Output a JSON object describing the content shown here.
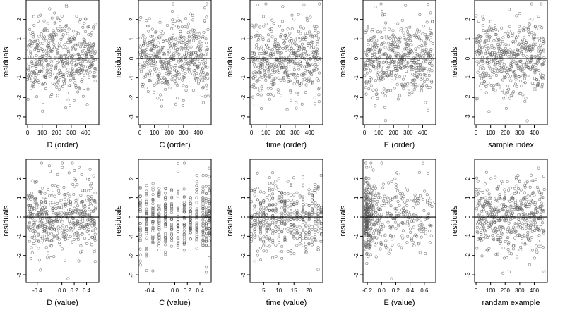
{
  "chart_data": [
    {
      "type": "scatter",
      "xlabel": "D (order)",
      "ylabel": "residuals",
      "xlim": [
        -10,
        490
      ],
      "ylim": [
        -3.4,
        3.0
      ],
      "xticks": [
        0,
        100,
        200,
        300,
        400
      ],
      "xtick_labels": [
        "0",
        "100",
        "200",
        "300",
        "400"
      ],
      "yticks": [
        -3,
        -2,
        -1,
        0,
        1,
        2
      ],
      "ytick_labels": [
        "-3",
        "-2",
        "-1",
        "0",
        "1",
        "2"
      ],
      "reference_line": 0,
      "x_kind": "index",
      "n": 470,
      "seed": 11
    },
    {
      "type": "scatter",
      "xlabel": "C (order)",
      "ylabel": "residuals",
      "xlim": [
        -10,
        490
      ],
      "ylim": [
        -3.4,
        3.0
      ],
      "xticks": [
        0,
        100,
        200,
        300,
        400
      ],
      "xtick_labels": [
        "0",
        "100",
        "200",
        "300",
        "400"
      ],
      "yticks": [
        -3,
        -2,
        -1,
        0,
        1,
        2
      ],
      "ytick_labels": [
        "-3",
        "-2",
        "-1",
        "0",
        "1",
        "2"
      ],
      "reference_line": 0,
      "x_kind": "index",
      "n": 470,
      "seed": 23
    },
    {
      "type": "scatter",
      "xlabel": "time (order)",
      "ylabel": "residuals",
      "xlim": [
        -10,
        490
      ],
      "ylim": [
        -3.4,
        3.0
      ],
      "xticks": [
        0,
        100,
        200,
        300,
        400
      ],
      "xtick_labels": [
        "0",
        "100",
        "200",
        "300",
        "400"
      ],
      "yticks": [
        -3,
        -2,
        -1,
        0,
        1,
        2
      ],
      "ytick_labels": [
        "-3",
        "-2",
        "-1",
        "0",
        "1",
        "2"
      ],
      "reference_line": 0,
      "x_kind": "index",
      "n": 470,
      "seed": 37
    },
    {
      "type": "scatter",
      "xlabel": "E (order)",
      "ylabel": "residuals",
      "xlim": [
        -10,
        490
      ],
      "ylim": [
        -3.4,
        3.0
      ],
      "xticks": [
        0,
        100,
        200,
        300,
        400
      ],
      "xtick_labels": [
        "0",
        "100",
        "200",
        "300",
        "400"
      ],
      "yticks": [
        -3,
        -2,
        -1,
        0,
        1,
        2
      ],
      "ytick_labels": [
        "-3",
        "-2",
        "-1",
        "0",
        "1",
        "2"
      ],
      "reference_line": 0,
      "x_kind": "index",
      "n": 470,
      "seed": 41
    },
    {
      "type": "scatter",
      "xlabel": "sample index",
      "ylabel": "residuals",
      "xlim": [
        -10,
        490
      ],
      "ylim": [
        -3.4,
        3.0
      ],
      "xticks": [
        0,
        100,
        200,
        300,
        400
      ],
      "xtick_labels": [
        "0",
        "100",
        "200",
        "300",
        "400"
      ],
      "yticks": [
        -3,
        -2,
        -1,
        0,
        1,
        2
      ],
      "ytick_labels": [
        "-3",
        "-2",
        "-1",
        "0",
        "1",
        "2"
      ],
      "reference_line": 0,
      "x_kind": "index",
      "n": 470,
      "seed": 53
    },
    {
      "type": "scatter",
      "xlabel": "D (value)",
      "ylabel": "residuals",
      "xlim": [
        -0.58,
        0.6
      ],
      "ylim": [
        -3.4,
        3.0
      ],
      "xticks": [
        -0.4,
        0.0,
        0.2,
        0.4
      ],
      "xtick_labels": [
        "-0.4",
        "0.0",
        "0.2",
        "0.4"
      ],
      "yticks": [
        -3,
        -2,
        -1,
        0,
        1,
        2
      ],
      "ytick_labels": [
        "-3",
        "-2",
        "-1",
        "0",
        "1",
        "2"
      ],
      "reference_line": 0,
      "x_kind": "uniform",
      "x_range": [
        -0.55,
        0.55
      ],
      "n": 470,
      "seed": 67
    },
    {
      "type": "scatter",
      "xlabel": "C (value)",
      "ylabel": "residuals",
      "xlim": [
        -0.58,
        0.58
      ],
      "ylim": [
        -3.4,
        3.0
      ],
      "xticks": [
        -0.4,
        0.0,
        0.2,
        0.4
      ],
      "xtick_labels": [
        "-0.4",
        "0.0",
        "0.2",
        "0.4"
      ],
      "yticks": [
        -3,
        -2,
        -1,
        0,
        1,
        2
      ],
      "ytick_labels": [
        "-3",
        "-2",
        "-1",
        "0",
        "1",
        "2"
      ],
      "reference_line": 0,
      "x_kind": "discrete",
      "x_values": [
        -0.55,
        -0.45,
        -0.35,
        -0.25,
        -0.15,
        -0.05,
        0.05,
        0.15,
        0.25,
        0.35,
        0.45,
        0.5,
        0.55
      ],
      "n": 470,
      "seed": 71
    },
    {
      "type": "scatter",
      "xlabel": "time (value)",
      "ylabel": "residuals",
      "xlim": [
        0.5,
        24.5
      ],
      "ylim": [
        -3.4,
        3.0
      ],
      "xticks": [
        5,
        10,
        15,
        20
      ],
      "xtick_labels": [
        "5",
        "10",
        "15",
        "20"
      ],
      "yticks": [
        -3,
        -2,
        -1,
        0,
        1,
        2
      ],
      "ytick_labels": [
        "-3",
        "-2",
        "-1",
        "0",
        "1",
        "2"
      ],
      "reference_line": 0,
      "x_kind": "discrete",
      "x_values": [
        1,
        2,
        3,
        4,
        5,
        6,
        7,
        8,
        9,
        10,
        11,
        12,
        13,
        14,
        15,
        16,
        17,
        18,
        19,
        20,
        21,
        22,
        23,
        24
      ],
      "n": 470,
      "seed": 83
    },
    {
      "type": "scatter",
      "xlabel": "E (value)",
      "ylabel": "residuals",
      "xlim": [
        -0.26,
        0.76
      ],
      "ylim": [
        -3.4,
        3.0
      ],
      "xticks": [
        -0.2,
        0.0,
        0.2,
        0.4,
        0.6
      ],
      "xtick_labels": [
        "-0.2",
        "0.0",
        "0.2",
        "0.4",
        "0.6"
      ],
      "yticks": [
        -3,
        -2,
        -1,
        0,
        1,
        2
      ],
      "ytick_labels": [
        "-3",
        "-2",
        "-1",
        "0",
        "1",
        "2"
      ],
      "reference_line": 0,
      "x_kind": "skewed",
      "x_range": [
        -0.22,
        0.75
      ],
      "n": 470,
      "seed": 97
    },
    {
      "type": "scatter",
      "xlabel": "randam example",
      "ylabel": "residuals",
      "xlim": [
        -10,
        490
      ],
      "ylim": [
        -3.4,
        3.0
      ],
      "xticks": [
        0,
        100,
        200,
        300,
        400
      ],
      "xtick_labels": [
        "0",
        "100",
        "200",
        "300",
        "400"
      ],
      "yticks": [
        -3,
        -2,
        -1,
        0,
        1,
        2
      ],
      "ytick_labels": [
        "-3",
        "-2",
        "-1",
        "0",
        "1",
        "2"
      ],
      "reference_line": 0,
      "x_kind": "index",
      "n": 470,
      "seed": 103
    }
  ],
  "colors": {
    "point": "#555555",
    "axis": "#000000",
    "reference_line": "#000000"
  }
}
